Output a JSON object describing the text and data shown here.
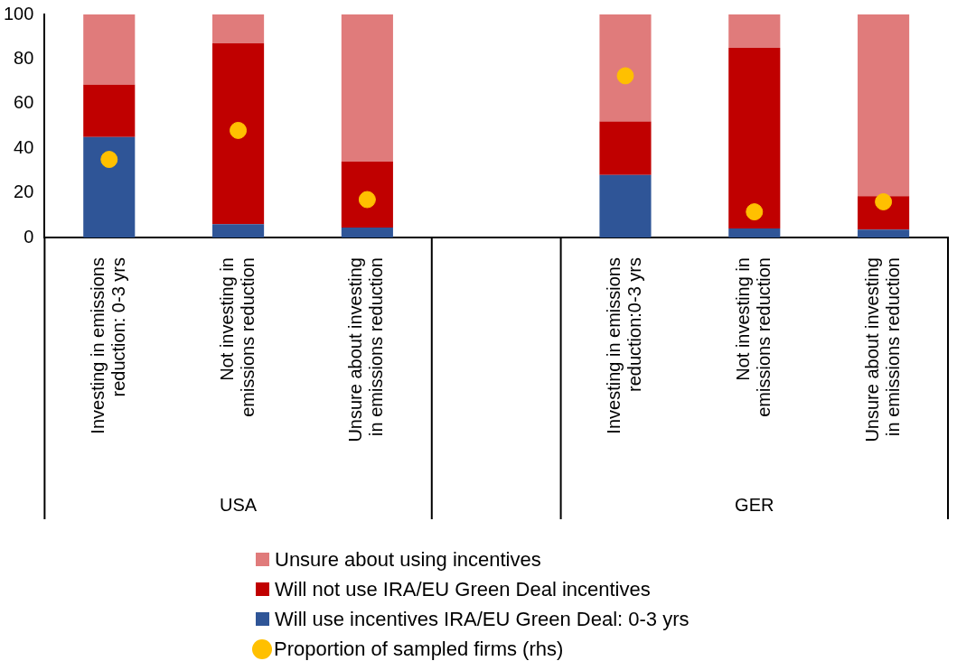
{
  "chart_data": {
    "type": "bar",
    "stacked": true,
    "categories": [
      "Investing in emissions reduction: 0-3 yrs",
      "Not investing in emissions reduction",
      "Unsure about investing in emissions reduction",
      null,
      "Investing in emissions reduction:0-3 yrs",
      "Not investing in emissions reduction",
      "Unsure about investing in emissions reduction"
    ],
    "series": [
      {
        "name": "Will use incentives IRA/EU Green Deal: 0-3 yrs",
        "color": "#2f5597",
        "values": [
          45,
          6,
          4.5,
          null,
          28,
          4,
          3.5
        ]
      },
      {
        "name": "Will not use IRA/EU Green Deal incentives",
        "color": "#c00000",
        "values": [
          23.5,
          81,
          29.5,
          null,
          24,
          81,
          15
        ]
      },
      {
        "name": "Unsure about using incentives",
        "color": "#e07b7b",
        "values": [
          31.5,
          13,
          66,
          null,
          48,
          15,
          81.5
        ]
      },
      {
        "name": "Proportion of sampled firms (rhs)",
        "type": "scatter",
        "color": "#ffc000",
        "marker": "circle",
        "values": [
          35,
          48,
          17,
          null,
          72.5,
          11.5,
          16
        ]
      }
    ],
    "ylim": [
      0,
      100
    ],
    "yticks": [
      0,
      20,
      40,
      60,
      80,
      100
    ],
    "grid": false,
    "legend": "bottom",
    "annotations": [
      "USA",
      "GER"
    ]
  }
}
